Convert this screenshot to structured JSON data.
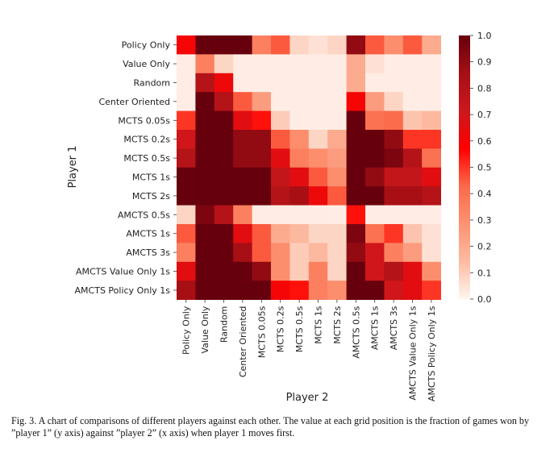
{
  "chart_data": {
    "type": "heatmap",
    "xlabel": "Player 2",
    "ylabel": "Player 1",
    "rows": [
      "Policy Only",
      "Value Only",
      "Random",
      "Center Oriented",
      "MCTS 0.05s",
      "MCTS 0.2s",
      "MCTS 0.5s",
      "MCTS 1s",
      "MCTS 2s",
      "AMCTS 0.5s",
      "AMCTS 1s",
      "AMCTS 3s",
      "AMCTS Value Only 1s",
      "AMCTS Policy Only 1s"
    ],
    "columns": [
      "Policy Only",
      "Value Only",
      "Random",
      "Center Oriented",
      "MCTS 0.05s",
      "MCTS 0.2s",
      "MCTS 0.5s",
      "MCTS 1s",
      "MCTS 2s",
      "AMCTS 0.5s",
      "AMCTS 1s",
      "AMCTS 3s",
      "AMCTS Value Only 1s",
      "AMCTS Policy Only 1s"
    ],
    "values": [
      [
        0.6,
        1.0,
        1.0,
        1.0,
        0.35,
        0.45,
        0.08,
        0.05,
        0.08,
        0.9,
        0.45,
        0.3,
        0.45,
        0.2
      ],
      [
        0.02,
        0.35,
        0.08,
        0.02,
        0.02,
        0.02,
        0.02,
        0.02,
        0.02,
        0.2,
        0.05,
        0.02,
        0.02,
        0.02
      ],
      [
        0.02,
        0.8,
        0.62,
        0.02,
        0.02,
        0.02,
        0.02,
        0.02,
        0.02,
        0.2,
        0.02,
        0.02,
        0.02,
        0.02
      ],
      [
        0.02,
        1.0,
        0.8,
        0.45,
        0.25,
        0.02,
        0.02,
        0.02,
        0.02,
        0.6,
        0.25,
        0.08,
        0.02,
        0.02
      ],
      [
        0.5,
        1.0,
        1.0,
        0.65,
        0.55,
        0.1,
        0.02,
        0.02,
        0.02,
        1.0,
        0.4,
        0.42,
        0.12,
        0.15
      ],
      [
        0.7,
        1.0,
        1.0,
        0.9,
        0.9,
        0.45,
        0.3,
        0.08,
        0.2,
        1.0,
        1.0,
        0.9,
        0.5,
        0.5
      ],
      [
        0.8,
        1.0,
        1.0,
        0.9,
        0.9,
        0.65,
        0.35,
        0.3,
        0.25,
        1.0,
        1.0,
        0.95,
        0.8,
        0.4
      ],
      [
        1.0,
        1.0,
        1.0,
        1.0,
        1.0,
        0.75,
        0.65,
        0.45,
        0.3,
        1.0,
        0.9,
        0.75,
        0.75,
        0.65
      ],
      [
        1.0,
        1.0,
        1.0,
        1.0,
        1.0,
        0.8,
        0.85,
        0.62,
        0.45,
        1.0,
        1.0,
        0.85,
        0.85,
        0.8
      ],
      [
        0.08,
        0.95,
        0.8,
        0.35,
        0.02,
        0.02,
        0.02,
        0.02,
        0.02,
        0.55,
        0.02,
        0.02,
        0.02,
        0.02
      ],
      [
        0.45,
        1.0,
        1.0,
        0.65,
        0.45,
        0.2,
        0.15,
        0.08,
        0.08,
        0.95,
        0.4,
        0.5,
        0.12,
        0.05
      ],
      [
        0.35,
        1.0,
        1.0,
        0.85,
        0.45,
        0.3,
        0.1,
        0.15,
        0.08,
        0.9,
        0.7,
        0.35,
        0.25,
        0.05
      ],
      [
        0.65,
        1.0,
        1.0,
        1.0,
        0.9,
        0.3,
        0.1,
        0.35,
        0.08,
        1.0,
        0.7,
        0.8,
        0.65,
        0.3
      ],
      [
        0.85,
        1.0,
        1.0,
        1.0,
        1.0,
        0.6,
        0.55,
        0.35,
        0.3,
        1.0,
        1.0,
        0.7,
        0.65,
        0.5
      ]
    ],
    "vmin": 0.0,
    "vmax": 1.0,
    "colorbar_ticks": [
      "0.0",
      "0.1",
      "0.2",
      "0.3",
      "0.4",
      "0.5",
      "0.6",
      "0.7",
      "0.8",
      "0.9",
      "1.0"
    ],
    "colormap": [
      "#fff5f0",
      "#fcbba1",
      "#fc9272",
      "#fb6a4a",
      "#ff0000",
      "#cb181d",
      "#a50f15",
      "#67000d"
    ],
    "grid": false
  },
  "caption": {
    "line1": "Fig. 3.   A chart of comparisons of different players against each other. The value at each grid position is the fraction of games won by",
    "line2": "”player 1” (y axis) against ”player 2” (x axis) when player 1 moves first."
  }
}
